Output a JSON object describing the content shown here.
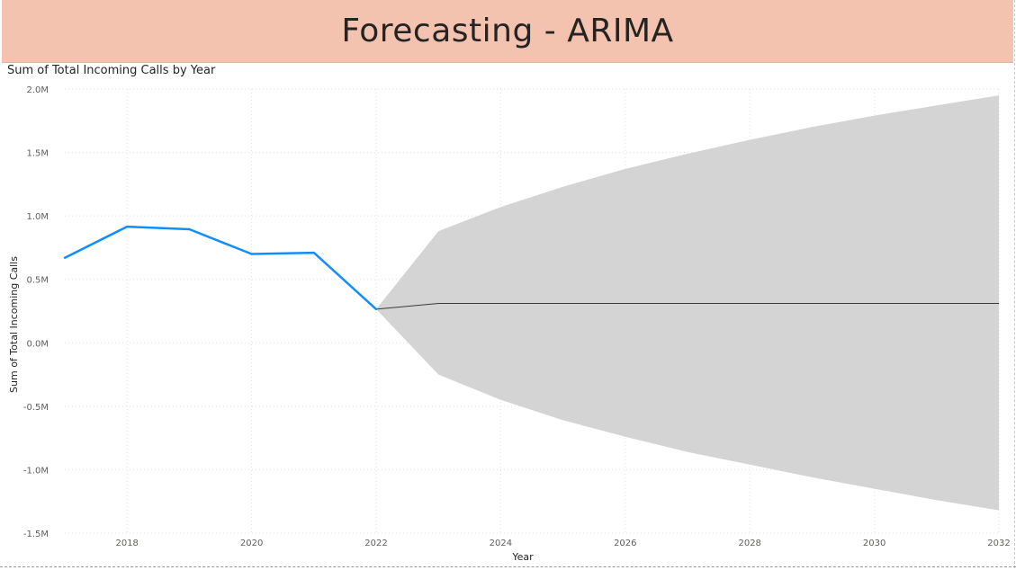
{
  "page": {
    "header_title": "Forecasting - ARIMA"
  },
  "chart_data": {
    "type": "line",
    "title": "Sum of Total Incoming Calls by Year",
    "xlabel": "Year",
    "ylabel": "Sum of Total Incoming Calls",
    "xlim": [
      2017,
      2032
    ],
    "ylim": [
      -1500000,
      2000000
    ],
    "x_ticks": [
      2018,
      2020,
      2022,
      2024,
      2026,
      2028,
      2030,
      2032
    ],
    "y_ticks": [
      {
        "value": 2000000,
        "label": "2.0M"
      },
      {
        "value": 1500000,
        "label": "1.5M"
      },
      {
        "value": 1000000,
        "label": "1.0M"
      },
      {
        "value": 500000,
        "label": "0.5M"
      },
      {
        "value": 0,
        "label": "0.0M"
      },
      {
        "value": -500000,
        "label": "-0.5M"
      },
      {
        "value": -1000000,
        "label": "-1.0M"
      },
      {
        "value": -1500000,
        "label": "-1.5M"
      }
    ],
    "grid": true,
    "actual": {
      "color": "#118dff",
      "x": [
        2017,
        2018,
        2019,
        2020,
        2021,
        2022
      ],
      "y": [
        670000,
        915000,
        895000,
        700000,
        710000,
        265000
      ]
    },
    "forecast": {
      "color": "#3a3a3a",
      "band_color": "#d4d4d4",
      "x": [
        2022,
        2023,
        2024,
        2025,
        2026,
        2027,
        2028,
        2029,
        2030,
        2031,
        2032
      ],
      "y": [
        265000,
        310000,
        310000,
        310000,
        310000,
        310000,
        310000,
        310000,
        310000,
        310000,
        310000
      ],
      "upper": [
        265000,
        880000,
        1070000,
        1230000,
        1370000,
        1490000,
        1600000,
        1700000,
        1790000,
        1870000,
        1950000
      ],
      "lower": [
        265000,
        -250000,
        -450000,
        -610000,
        -740000,
        -860000,
        -960000,
        -1060000,
        -1150000,
        -1240000,
        -1320000
      ]
    }
  }
}
